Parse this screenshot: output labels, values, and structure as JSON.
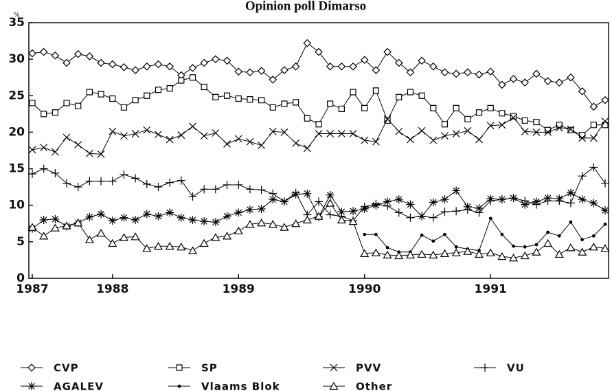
{
  "chart_data": {
    "type": "line",
    "title": "Opinion poll Dimarso",
    "ylabel": "%",
    "categories": [
      "1987",
      null,
      null,
      null,
      null,
      null,
      null,
      "1988",
      null,
      null,
      null,
      null,
      null,
      null,
      null,
      null,
      null,
      null,
      "1989",
      null,
      null,
      null,
      null,
      null,
      null,
      null,
      null,
      null,
      null,
      "1990",
      null,
      null,
      null,
      null,
      null,
      null,
      null,
      null,
      null,
      null,
      "1991",
      null,
      null,
      null,
      null,
      null,
      null,
      null,
      null,
      null,
      null
    ],
    "ylim": [
      0,
      35
    ],
    "yticks": [
      0,
      5,
      10,
      15,
      20,
      25,
      30,
      35
    ],
    "grid": false,
    "series": [
      {
        "name": "CVP",
        "color": "#000000",
        "marker": "diamond",
        "values": [
          30.8,
          31,
          30.5,
          29.5,
          30.7,
          30.4,
          29.5,
          29.3,
          28.9,
          28.5,
          29,
          29.3,
          29,
          27.8,
          28.8,
          29.5,
          30,
          29.8,
          28.3,
          28.2,
          28.4,
          27.2,
          28.5,
          29,
          32.2,
          31,
          29,
          29,
          29,
          29.9,
          28.5,
          31,
          29.5,
          28.2,
          29.8,
          29,
          28.2,
          28,
          28.2,
          27.9,
          28.3,
          26.5,
          27.3,
          26.8,
          28,
          27,
          26.8,
          27.5,
          25.6,
          23.5,
          24.4
        ]
      },
      {
        "name": "SP",
        "color": "#000000",
        "marker": "square",
        "values": [
          24,
          22.5,
          22.7,
          24,
          23.6,
          25.5,
          25.2,
          24.6,
          23.4,
          24.4,
          25,
          25.8,
          26,
          27.1,
          27.5,
          26.2,
          24.8,
          25,
          24.6,
          24.5,
          24.4,
          23.4,
          23.9,
          24.1,
          21.9,
          21.1,
          23.9,
          23.2,
          25.5,
          23.3,
          25.7,
          21.6,
          24.8,
          25.5,
          25,
          23.3,
          21.1,
          23.3,
          21.8,
          22.7,
          23.3,
          22.6,
          22.2,
          21.6,
          21.4,
          20.3,
          21,
          20.3,
          19.6,
          21,
          21
        ]
      },
      {
        "name": "PVV",
        "color": "#000000",
        "marker": "x",
        "values": [
          17.6,
          17.9,
          17.3,
          19.3,
          18.3,
          17.1,
          17,
          20.1,
          19.5,
          19.8,
          20.3,
          19.7,
          19,
          19.6,
          20.8,
          19.5,
          19.9,
          18.4,
          19.1,
          18.7,
          18.2,
          20.1,
          20,
          18.5,
          17.8,
          19.8,
          19.8,
          19.8,
          19.8,
          18.9,
          18.7,
          21.8,
          20.1,
          19,
          20.2,
          18.9,
          19.5,
          19.8,
          20.2,
          19,
          20.9,
          21,
          22,
          20.1,
          20,
          20,
          20.6,
          20.4,
          19.2,
          19.2,
          21.5
        ]
      },
      {
        "name": "VU",
        "color": "#000000",
        "marker": "plus",
        "values": [
          14.3,
          15,
          14.4,
          13,
          12.5,
          13.3,
          13.3,
          13.3,
          14.2,
          13.7,
          12.9,
          12.5,
          13.1,
          13.4,
          11.2,
          12.2,
          12.2,
          12.8,
          12.8,
          12.2,
          12.1,
          11.6,
          10.5,
          11.7,
          8.7,
          10.5,
          8.7,
          8.5,
          7.9,
          9.8,
          10.2,
          9.9,
          9,
          8.3,
          8.5,
          8.3,
          9.1,
          9.2,
          9.4,
          9,
          10.6,
          10.8,
          11,
          10.6,
          10.1,
          10.6,
          10.6,
          10.3,
          14,
          15.2,
          13
        ]
      },
      {
        "name": "AGALEV",
        "color": "#000000",
        "marker": "asterisk",
        "values": [
          6.8,
          8,
          8.1,
          7.1,
          7.6,
          8.4,
          8.8,
          7.9,
          8.3,
          8,
          8.8,
          8.5,
          9,
          8.3,
          8,
          7.8,
          7.7,
          8.5,
          9,
          9.4,
          9.5,
          10.8,
          10.5,
          11.5,
          11.6,
          8.4,
          11.4,
          9.1,
          9.2,
          9.5,
          10,
          10.5,
          10.8,
          10.1,
          8.5,
          10.4,
          10.8,
          12,
          9.8,
          9.6,
          10.9,
          10.8,
          11,
          10.1,
          10.5,
          11,
          10.9,
          11.7,
          10.8,
          10.3,
          9.3
        ]
      },
      {
        "name": "Vlaams Blok",
        "color": "#000000",
        "marker": "dot",
        "values": [
          null,
          null,
          null,
          null,
          null,
          null,
          null,
          null,
          null,
          null,
          null,
          null,
          null,
          null,
          null,
          null,
          null,
          null,
          null,
          null,
          null,
          null,
          null,
          null,
          null,
          null,
          null,
          null,
          null,
          6,
          6,
          4.2,
          3.6,
          3.6,
          5.9,
          5.1,
          6,
          4.3,
          4,
          3.8,
          8.2,
          6,
          4.4,
          4.3,
          4.6,
          6.3,
          5.8,
          7.7,
          5.3,
          5.8,
          7.4
        ]
      },
      {
        "name": "Other",
        "color": "#000000",
        "marker": "triangle",
        "values": [
          7,
          5.8,
          6.9,
          7.2,
          7.6,
          5.3,
          6.2,
          4.8,
          5.6,
          5.7,
          4.1,
          4.4,
          4.4,
          4.3,
          3.8,
          4.8,
          5.6,
          5.8,
          6.5,
          7.4,
          7.6,
          7.4,
          7,
          7.5,
          8,
          8.5,
          10.3,
          8,
          7.8,
          3.4,
          3.5,
          3.2,
          3.1,
          3.2,
          3.3,
          3.2,
          3.4,
          3.5,
          3.7,
          3.3,
          3.5,
          3,
          2.8,
          3.1,
          3.6,
          4.8,
          3.3,
          4.2,
          3.6,
          4.3,
          4.1
        ]
      }
    ]
  }
}
